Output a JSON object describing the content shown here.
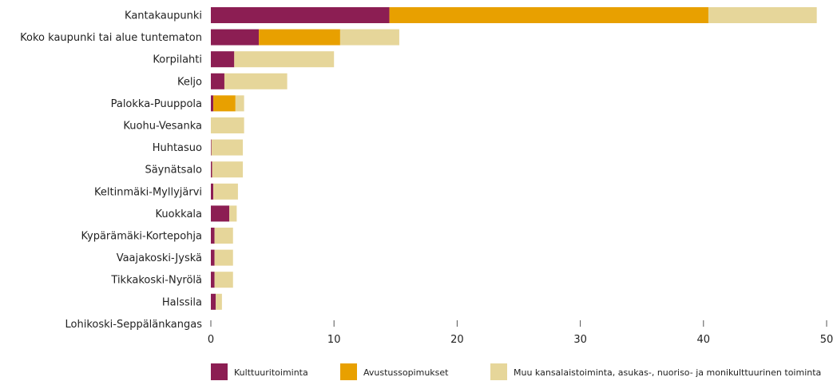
{
  "chart_data": {
    "type": "bar",
    "orientation": "horizontal",
    "stacked": true,
    "categories": [
      "Kantakaupunki",
      "Koko kaupunki tai alue tuntematon",
      "Korpilahti",
      "Keljo",
      "Palokka-Puuppola",
      "Kuohu-Vesanka",
      "Huhtasuo",
      "Säynätsalo",
      "Keltinmäki-Myllyjärvi",
      "Kuokkala",
      "Kypärämäki-Kortepohja",
      "Vaajakoski-Jyskä",
      "Tikkakoski-Nyrölä",
      "Halssila",
      "Lohikoski-Seppälänkangas"
    ],
    "series": [
      {
        "name": "Kulttuuritoiminta",
        "color": "#8c1e53",
        "values": [
          14.5,
          3.9,
          1.9,
          1.1,
          0.2,
          0,
          0.05,
          0.1,
          0.2,
          1.5,
          0.3,
          0.3,
          0.3,
          0.4,
          0
        ]
      },
      {
        "name": "Avustussopimukset",
        "color": "#e8a000",
        "values": [
          25.9,
          6.6,
          0,
          0,
          1.8,
          0,
          0,
          0,
          0,
          0,
          0,
          0,
          0,
          0,
          0
        ]
      },
      {
        "name": "Muu kansalaistoiminta, asukas-, nuoriso- ja monikulttuurinen toiminta",
        "color": "#e6d69a",
        "values": [
          8.8,
          4.8,
          8.1,
          5.1,
          0.7,
          2.7,
          2.55,
          2.5,
          2.0,
          0.6,
          1.5,
          1.5,
          1.5,
          0.5,
          0
        ]
      }
    ],
    "xlim": [
      0,
      50
    ],
    "xticks": [
      "0",
      "10",
      "20",
      "30",
      "40",
      "50"
    ],
    "grid": false,
    "legend_position": "bottom"
  }
}
